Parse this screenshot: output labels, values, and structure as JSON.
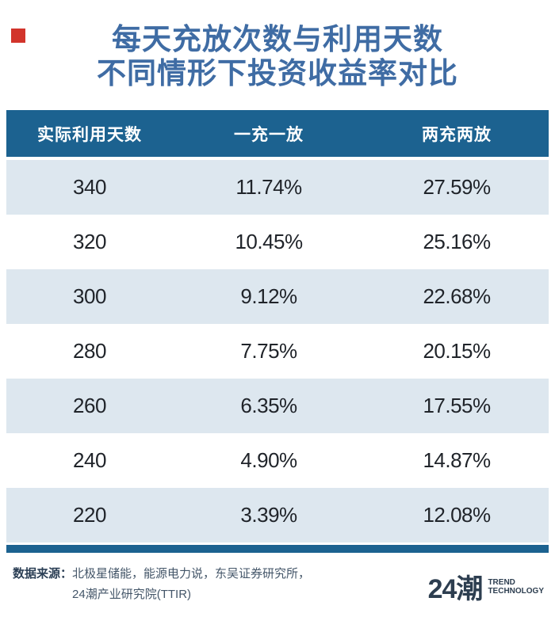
{
  "colors": {
    "teal": "#1c6290",
    "title_blue": "#3f6ca4",
    "row_light": "#dde7ef",
    "red_square": "#d2342b"
  },
  "title": {
    "line1": "每天充放次数与利用天数",
    "line2": "不同情形下投资收益率对比"
  },
  "table": {
    "columns": [
      "实际利用天数",
      "一充一放",
      "两充两放"
    ],
    "rows": [
      [
        "340",
        "11.74%",
        "27.59%"
      ],
      [
        "320",
        "10.45%",
        "25.16%"
      ],
      [
        "300",
        "9.12%",
        "22.68%"
      ],
      [
        "280",
        "7.75%",
        "20.15%"
      ],
      [
        "260",
        "6.35%",
        "17.55%"
      ],
      [
        "240",
        "4.90%",
        "14.87%"
      ],
      [
        "220",
        "3.39%",
        "12.08%"
      ]
    ]
  },
  "chart_data": {
    "type": "table",
    "title": "每天充放次数与利用天数不同情形下投资收益率对比",
    "columns": [
      "实际利用天数",
      "一充一放",
      "两充两放"
    ],
    "rows": [
      [
        340,
        "11.74%",
        "27.59%"
      ],
      [
        320,
        "10.45%",
        "25.16%"
      ],
      [
        300,
        "9.12%",
        "22.68%"
      ],
      [
        280,
        "7.75%",
        "20.15%"
      ],
      [
        260,
        "6.35%",
        "17.55%"
      ],
      [
        240,
        "4.90%",
        "14.87%"
      ],
      [
        220,
        "3.39%",
        "12.08%"
      ]
    ]
  },
  "footer": {
    "source_label": "数据来源：",
    "source_line1": "北极星储能，能源电力说，东吴证券研究所，",
    "source_line2": "24潮产业研究院(TTIR)",
    "logo_text": "24潮",
    "logo_sub1": "TREND",
    "logo_sub2": "TECHNOLOGY"
  }
}
